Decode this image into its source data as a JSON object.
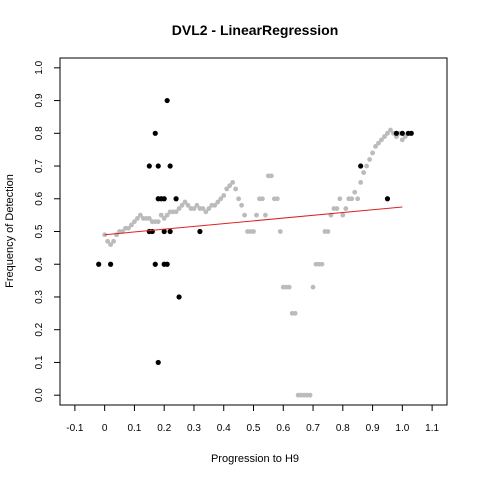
{
  "chart_data": {
    "type": "scatter",
    "title": "DVL2 - LinearRegression",
    "xlabel": "Progression to H9",
    "ylabel": "Frequency of Detection",
    "xlim": [
      -0.15,
      1.15
    ],
    "ylim": [
      -0.03,
      1.03
    ],
    "xticks": [
      "-0.1",
      "0",
      "0.1",
      "0.2",
      "0.3",
      "0.4",
      "0.5",
      "0.6",
      "0.7",
      "0.8",
      "0.9",
      "1.0",
      "1.1"
    ],
    "yticks": [
      "0.0",
      "0.1",
      "0.2",
      "0.3",
      "0.4",
      "0.5",
      "0.6",
      "0.7",
      "0.8",
      "0.9",
      "1.0"
    ],
    "grid": false,
    "colors": {
      "observed": "#000000",
      "smoothed": "#bbbbbb",
      "fit": "#dd2222"
    },
    "series": [
      {
        "kind": "observed",
        "points": [
          [
            -0.02,
            0.4
          ],
          [
            0.02,
            0.4
          ],
          [
            0.15,
            0.7
          ],
          [
            0.15,
            0.5
          ],
          [
            0.16,
            0.5
          ],
          [
            0.17,
            0.4
          ],
          [
            0.17,
            0.8
          ],
          [
            0.18,
            0.7
          ],
          [
            0.18,
            0.6
          ],
          [
            0.18,
            0.1
          ],
          [
            0.19,
            0.6
          ],
          [
            0.2,
            0.6
          ],
          [
            0.2,
            0.5
          ],
          [
            0.2,
            0.4
          ],
          [
            0.21,
            0.4
          ],
          [
            0.21,
            0.9
          ],
          [
            0.22,
            0.7
          ],
          [
            0.22,
            0.5
          ],
          [
            0.24,
            0.6
          ],
          [
            0.25,
            0.3
          ],
          [
            0.32,
            0.5
          ],
          [
            0.86,
            0.7
          ],
          [
            0.95,
            0.6
          ],
          [
            0.98,
            0.8
          ],
          [
            1.0,
            0.8
          ],
          [
            1.02,
            0.8
          ],
          [
            1.03,
            0.8
          ]
        ]
      },
      {
        "kind": "smoothed",
        "points": [
          [
            0.0,
            0.49
          ],
          [
            0.01,
            0.47
          ],
          [
            0.02,
            0.46
          ],
          [
            0.03,
            0.47
          ],
          [
            0.04,
            0.49
          ],
          [
            0.05,
            0.5
          ],
          [
            0.06,
            0.5
          ],
          [
            0.07,
            0.51
          ],
          [
            0.08,
            0.51
          ],
          [
            0.09,
            0.52
          ],
          [
            0.1,
            0.53
          ],
          [
            0.11,
            0.54
          ],
          [
            0.12,
            0.55
          ],
          [
            0.13,
            0.54
          ],
          [
            0.14,
            0.54
          ],
          [
            0.15,
            0.54
          ],
          [
            0.16,
            0.53
          ],
          [
            0.17,
            0.53
          ],
          [
            0.18,
            0.53
          ],
          [
            0.19,
            0.55
          ],
          [
            0.2,
            0.54
          ],
          [
            0.21,
            0.55
          ],
          [
            0.22,
            0.56
          ],
          [
            0.23,
            0.56
          ],
          [
            0.24,
            0.56
          ],
          [
            0.25,
            0.57
          ],
          [
            0.26,
            0.58
          ],
          [
            0.27,
            0.59
          ],
          [
            0.28,
            0.58
          ],
          [
            0.29,
            0.57
          ],
          [
            0.3,
            0.57
          ],
          [
            0.31,
            0.58
          ],
          [
            0.32,
            0.57
          ],
          [
            0.33,
            0.57
          ],
          [
            0.34,
            0.56
          ],
          [
            0.35,
            0.57
          ],
          [
            0.36,
            0.58
          ],
          [
            0.37,
            0.58
          ],
          [
            0.38,
            0.59
          ],
          [
            0.39,
            0.6
          ],
          [
            0.4,
            0.61
          ],
          [
            0.41,
            0.63
          ],
          [
            0.42,
            0.64
          ],
          [
            0.43,
            0.65
          ],
          [
            0.44,
            0.63
          ],
          [
            0.45,
            0.6
          ],
          [
            0.46,
            0.58
          ],
          [
            0.47,
            0.55
          ],
          [
            0.48,
            0.5
          ],
          [
            0.49,
            0.5
          ],
          [
            0.5,
            0.5
          ],
          [
            0.51,
            0.55
          ],
          [
            0.52,
            0.6
          ],
          [
            0.53,
            0.6
          ],
          [
            0.54,
            0.55
          ],
          [
            0.55,
            0.67
          ],
          [
            0.56,
            0.67
          ],
          [
            0.57,
            0.6
          ],
          [
            0.58,
            0.6
          ],
          [
            0.59,
            0.5
          ],
          [
            0.6,
            0.33
          ],
          [
            0.61,
            0.33
          ],
          [
            0.62,
            0.33
          ],
          [
            0.63,
            0.25
          ],
          [
            0.64,
            0.25
          ],
          [
            0.65,
            0.0
          ],
          [
            0.66,
            0.0
          ],
          [
            0.67,
            0.0
          ],
          [
            0.68,
            0.0
          ],
          [
            0.69,
            0.0
          ],
          [
            0.7,
            0.33
          ],
          [
            0.71,
            0.4
          ],
          [
            0.72,
            0.4
          ],
          [
            0.73,
            0.4
          ],
          [
            0.74,
            0.5
          ],
          [
            0.75,
            0.5
          ],
          [
            0.76,
            0.55
          ],
          [
            0.77,
            0.57
          ],
          [
            0.78,
            0.57
          ],
          [
            0.79,
            0.6
          ],
          [
            0.8,
            0.55
          ],
          [
            0.81,
            0.57
          ],
          [
            0.82,
            0.6
          ],
          [
            0.83,
            0.6
          ],
          [
            0.84,
            0.62
          ],
          [
            0.85,
            0.6
          ],
          [
            0.86,
            0.65
          ],
          [
            0.87,
            0.68
          ],
          [
            0.88,
            0.7
          ],
          [
            0.89,
            0.72
          ],
          [
            0.9,
            0.74
          ],
          [
            0.91,
            0.76
          ],
          [
            0.92,
            0.77
          ],
          [
            0.93,
            0.78
          ],
          [
            0.94,
            0.79
          ],
          [
            0.95,
            0.8
          ],
          [
            0.96,
            0.81
          ],
          [
            0.97,
            0.8
          ],
          [
            0.98,
            0.79
          ],
          [
            0.99,
            0.8
          ],
          [
            1.0,
            0.78
          ],
          [
            1.01,
            0.79
          ]
        ]
      }
    ],
    "fit_line": {
      "from": [
        0.0,
        0.49
      ],
      "to": [
        1.0,
        0.575
      ]
    }
  }
}
